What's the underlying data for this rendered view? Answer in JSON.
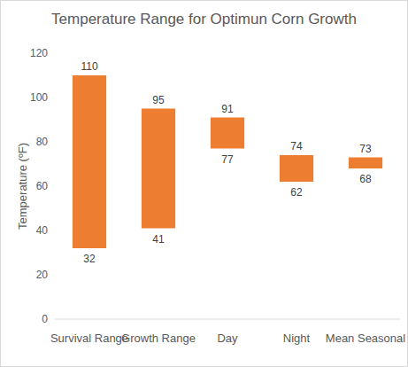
{
  "chart_data": {
    "type": "range_bar",
    "title": "Temperature Range for Optimun Corn Growth",
    "y_label": "Temperature (ºF)",
    "categories": [
      "Survival Range",
      "Growth Range",
      "Day",
      "Night",
      "Mean Seasonal"
    ],
    "low": [
      32,
      41,
      77,
      62,
      68
    ],
    "high": [
      110,
      95,
      91,
      74,
      73
    ],
    "color": "#ed7d31",
    "ylim": [
      0,
      120
    ],
    "yticks": [
      0,
      20,
      40,
      60,
      80,
      100,
      120
    ],
    "grid": false,
    "data_labels": true
  }
}
